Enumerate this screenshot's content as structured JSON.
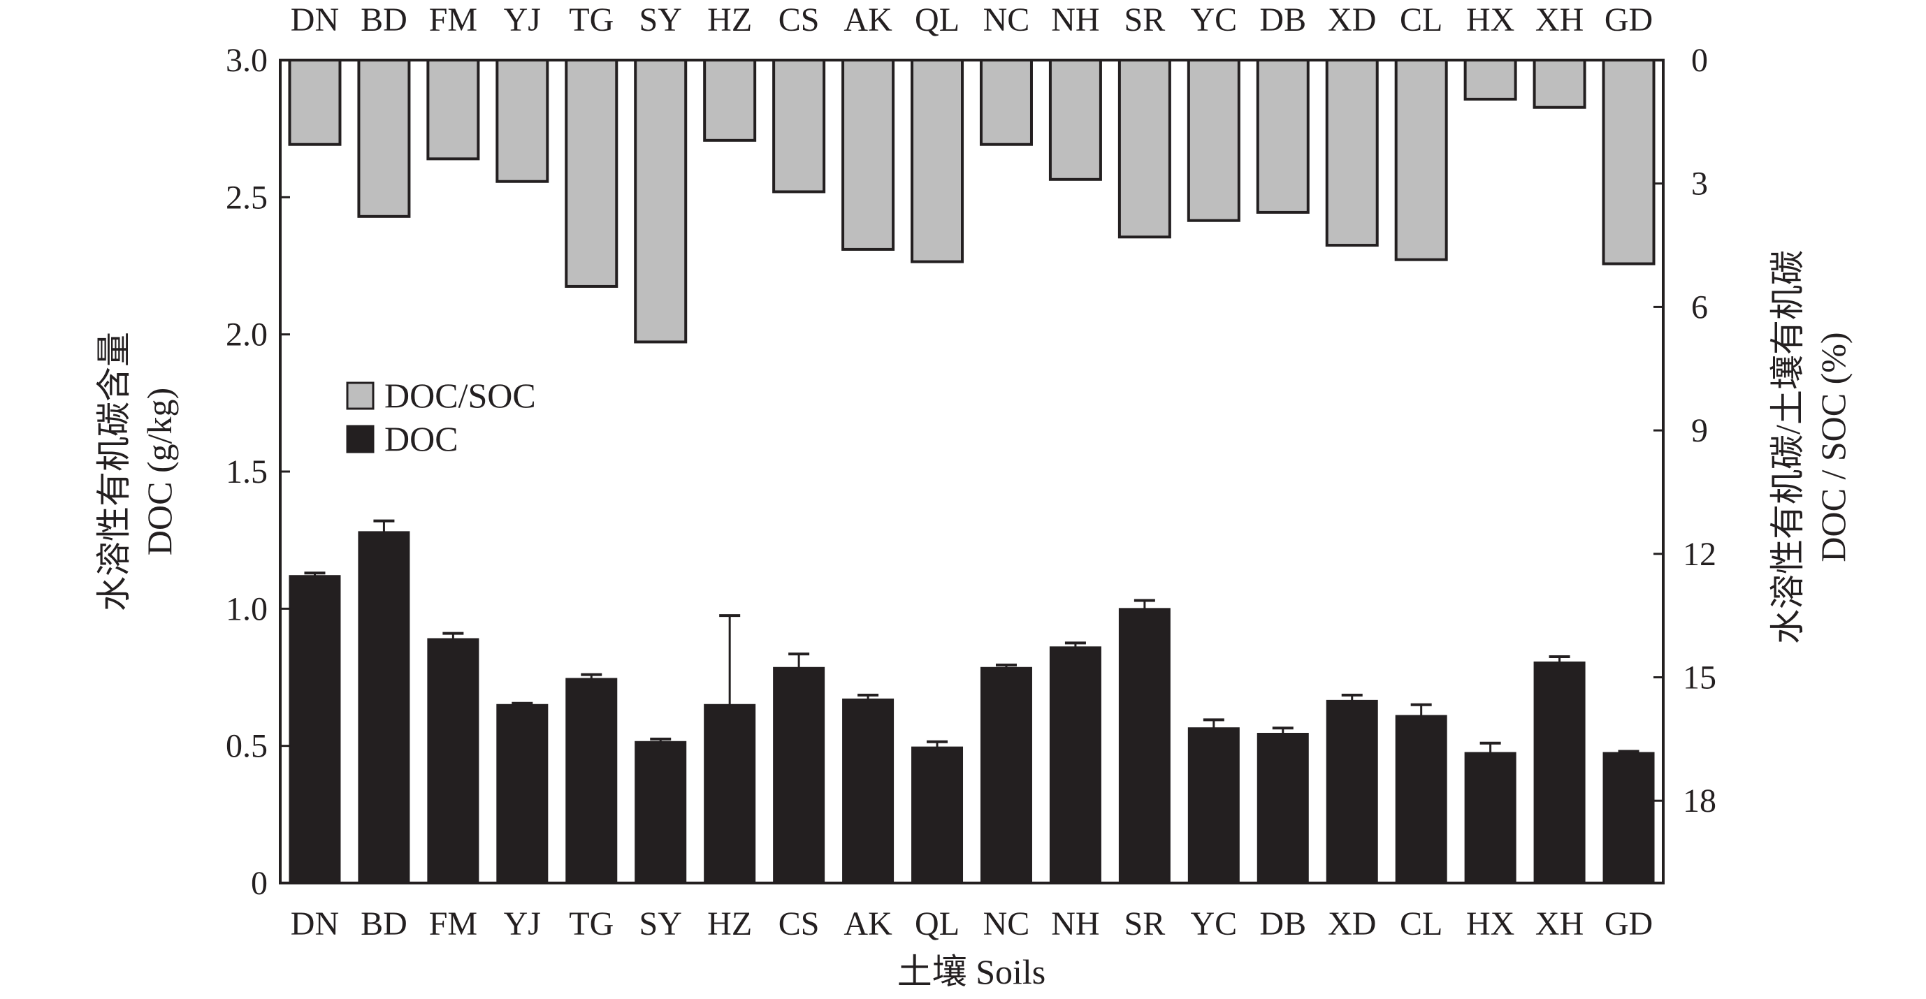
{
  "chart_data": {
    "type": "bar",
    "categories": [
      "DN",
      "BD",
      "FM",
      "YJ",
      "TG",
      "SY",
      "HZ",
      "CS",
      "AK",
      "QL",
      "NC",
      "NH",
      "SR",
      "YC",
      "DB",
      "XD",
      "CL",
      "HX",
      "XH",
      "GD"
    ],
    "series": [
      {
        "name": "DOC/SOC",
        "axis": "right",
        "direction": "downward-from-top",
        "color": "#bebebe",
        "values": [
          2.05,
          3.8,
          2.4,
          2.95,
          5.5,
          6.85,
          1.95,
          3.2,
          4.6,
          4.9,
          2.05,
          2.9,
          4.3,
          3.9,
          3.7,
          4.5,
          4.85,
          0.95,
          1.15,
          4.95
        ]
      },
      {
        "name": "DOC",
        "axis": "left",
        "color": "#231f20",
        "values": [
          1.12,
          1.28,
          0.89,
          0.65,
          0.745,
          0.515,
          0.65,
          0.785,
          0.67,
          0.495,
          0.785,
          0.86,
          1.0,
          0.565,
          0.545,
          0.665,
          0.61,
          0.475,
          0.805,
          0.475
        ],
        "error": [
          0.01,
          0.04,
          0.02,
          0.005,
          0.015,
          0.01,
          0.325,
          0.05,
          0.015,
          0.02,
          0.01,
          0.015,
          0.03,
          0.03,
          0.02,
          0.02,
          0.04,
          0.035,
          0.02,
          0.005
        ]
      }
    ],
    "left_axis": {
      "label_cn": "水溶性有机碳含量",
      "label_en": "DOC (g/kg)",
      "ylim": [
        0,
        3.0
      ],
      "ticks": [
        "0",
        "0.5",
        "1.0",
        "1.5",
        "2.0",
        "2.5",
        "3.0"
      ]
    },
    "right_axis": {
      "label_cn": "水溶性有机碳/土壤有机碳",
      "label_en": "DOC / SOC (%)",
      "ylim": [
        0,
        20
      ],
      "inverted": true,
      "ticks": [
        "0",
        "3",
        "6",
        "9",
        "12",
        "15",
        "18"
      ]
    },
    "xlabel": "土壤 Soils",
    "legend": {
      "placement": "upper-left",
      "items": [
        "DOC/SOC",
        "DOC"
      ]
    },
    "grid": false
  }
}
